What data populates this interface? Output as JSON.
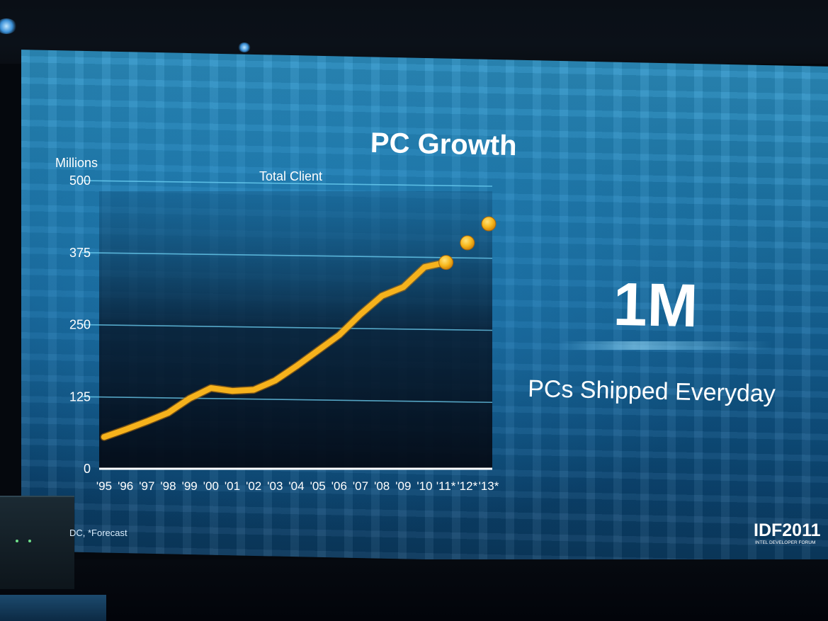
{
  "slide": {
    "title": "PC Growth",
    "headline": "1M",
    "subheadline": "PCs Shipped Everyday",
    "footnote": "DC, *Forecast",
    "logo": "IDF2011",
    "logo_sub": "INTEL DEVELOPER FORUM"
  },
  "chart_data": {
    "type": "line",
    "ylabel": "Millions",
    "series_label": "Total Client",
    "ylim": [
      0,
      500
    ],
    "yticks": [
      "0",
      "125",
      "250",
      "375",
      "500"
    ],
    "ytick_values": [
      0,
      125,
      250,
      375,
      500
    ],
    "categories": [
      "'95",
      "'96",
      "'97",
      "'98",
      "'99",
      "'00",
      "'01",
      "'02",
      "'03",
      "'04",
      "'05",
      "'06",
      "'07",
      "'08",
      "'09",
      "'10",
      "'11*",
      "'12*",
      "'13*"
    ],
    "series": [
      {
        "name": "Total Client",
        "style": "line",
        "values": [
          55,
          68,
          82,
          97,
          122,
          140,
          135,
          137,
          153,
          178,
          205,
          232,
          268,
          300,
          315,
          350,
          358,
          null,
          null
        ]
      },
      {
        "name": "Total Client",
        "style": "forecast-points",
        "values": [
          null,
          null,
          null,
          null,
          null,
          null,
          null,
          null,
          null,
          null,
          null,
          null,
          null,
          null,
          null,
          null,
          358,
          392,
          425
        ]
      }
    ],
    "line_color": "#f6b21c",
    "point_color": "#f7c21f",
    "grid": true
  }
}
